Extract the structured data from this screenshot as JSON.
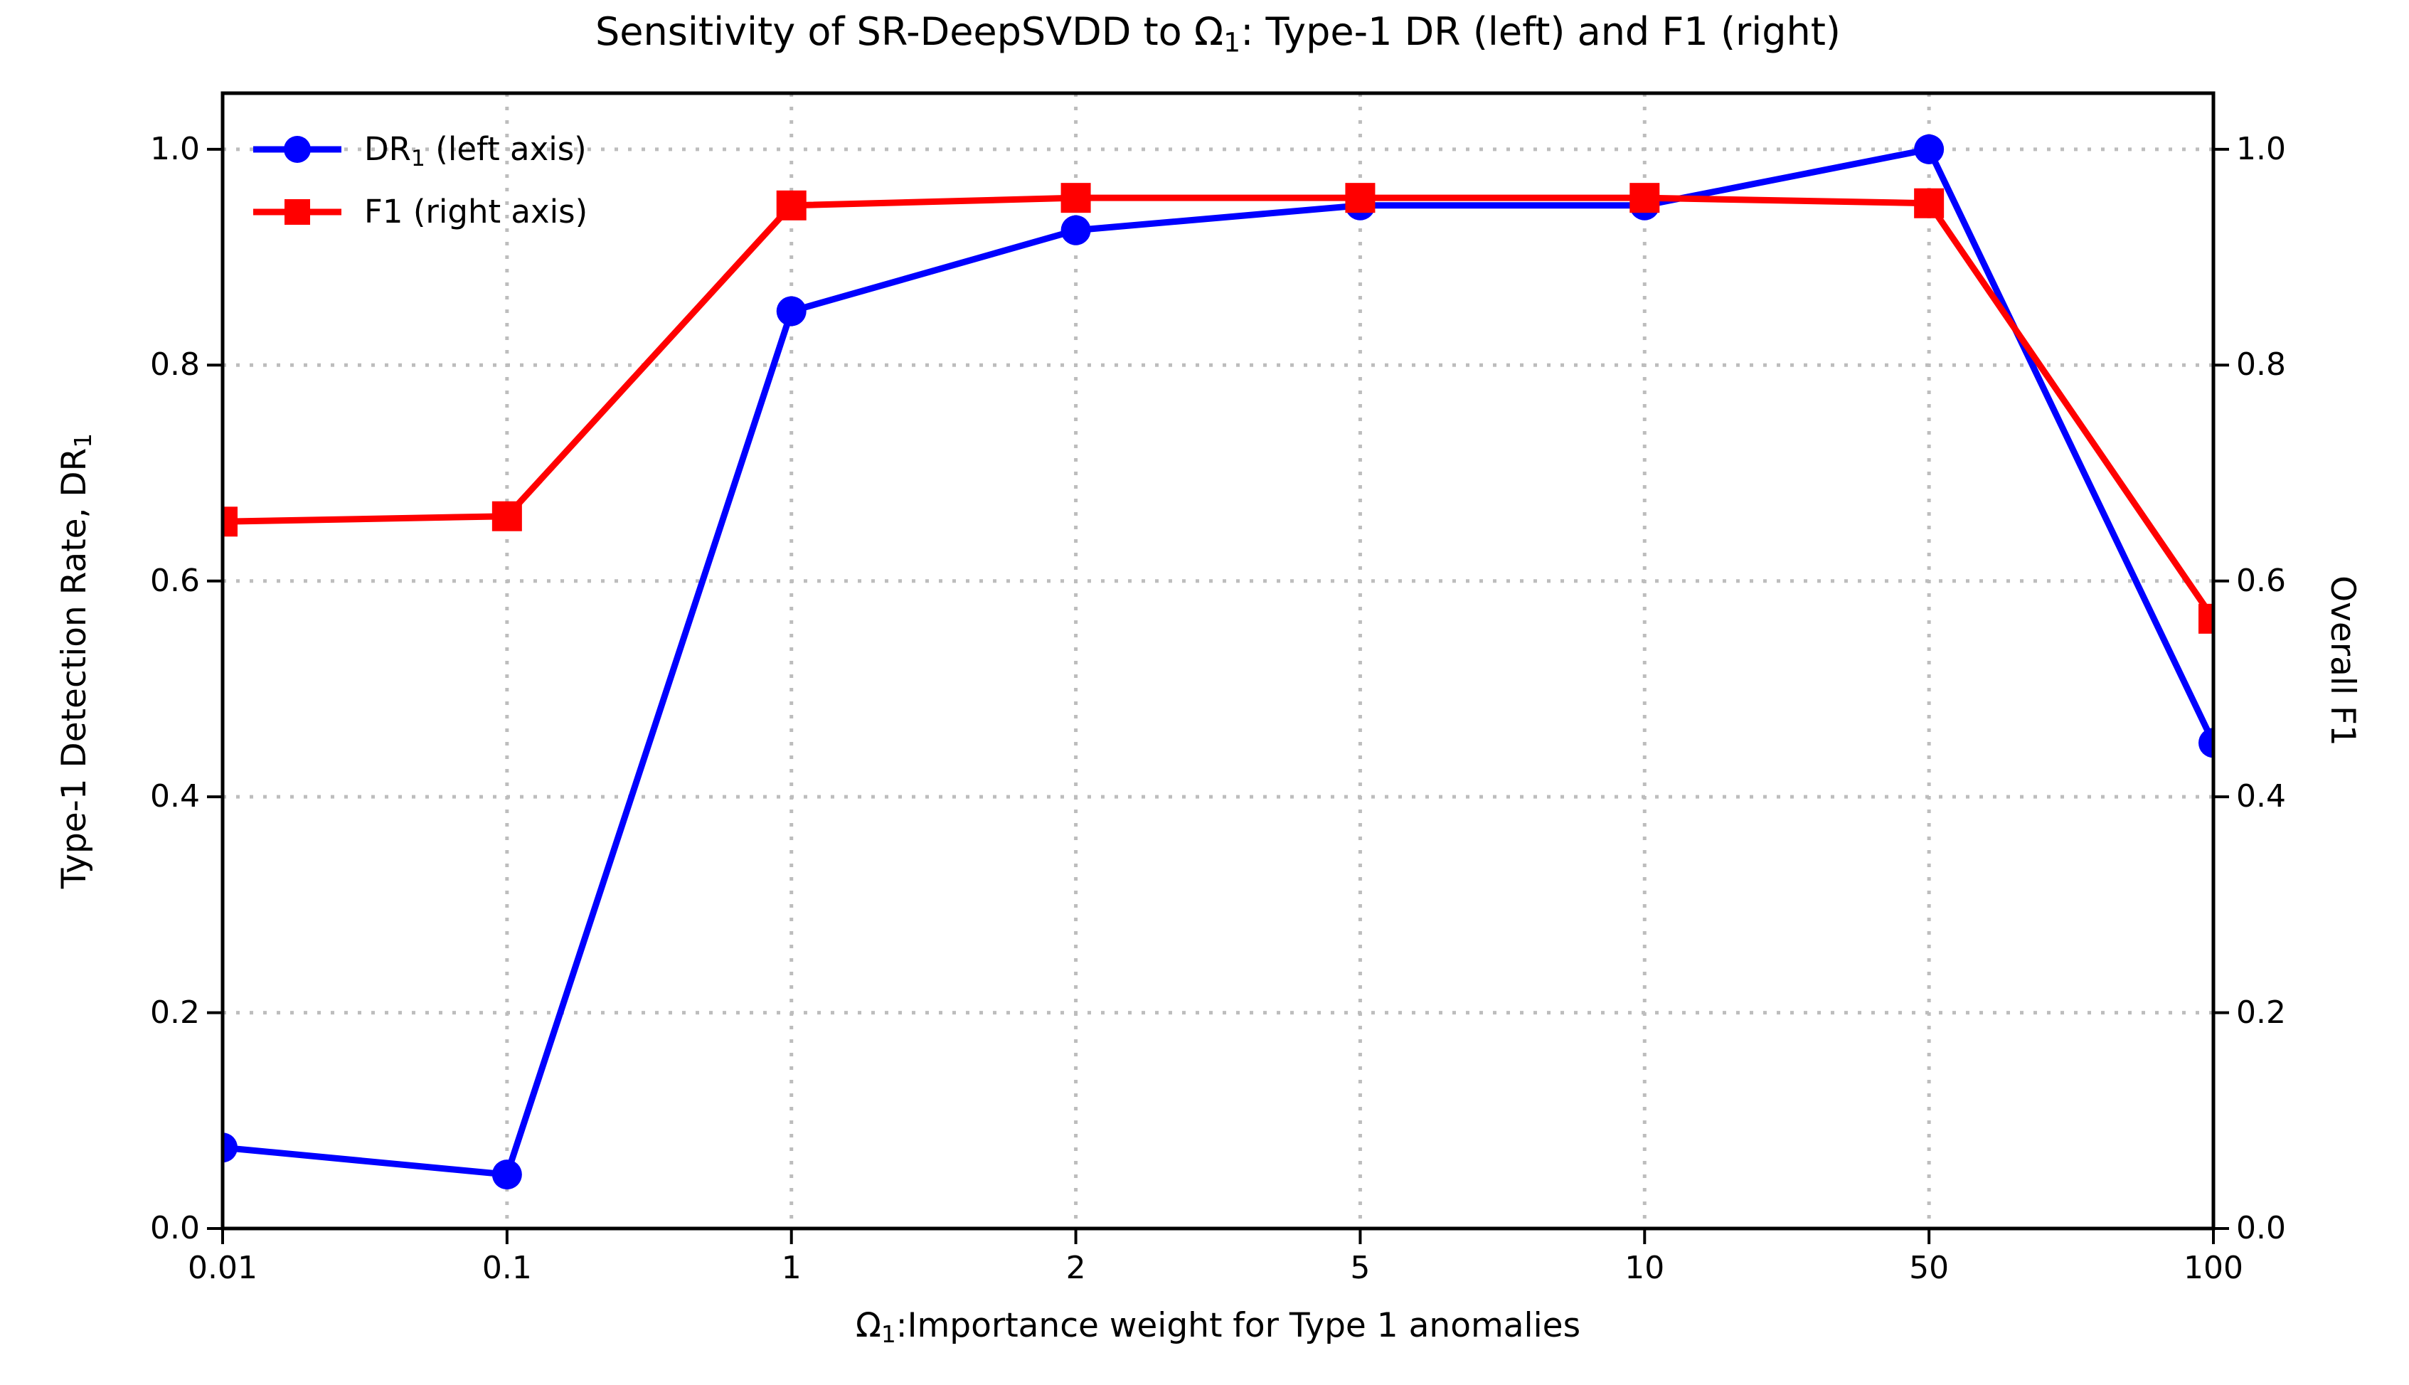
{
  "figure": {
    "title": {
      "prefix": "Sensitivity of SR-DeepSVDD to Ω",
      "sub": "1",
      "suffix": ": Type-1 DR (left) and F1 (right)"
    },
    "background_color": "#ffffff"
  },
  "axes": {
    "x": {
      "label": {
        "prefix": "Ω",
        "sub": "1",
        "suffix": ":Importance weight for Type 1 anomalies"
      },
      "tick_labels": [
        "0.01",
        "0.1",
        "1",
        "2",
        "5",
        "10",
        "50",
        "100"
      ]
    },
    "y_left": {
      "label": {
        "prefix": "Type-1 Detection Rate, DR",
        "sub": "1"
      },
      "tick_labels": [
        "0.0",
        "0.2",
        "0.4",
        "0.6",
        "0.8",
        "1.0"
      ]
    },
    "y_right": {
      "label": "Overall F1",
      "tick_labels": [
        "0.0",
        "0.2",
        "0.4",
        "0.6",
        "0.8",
        "1.0"
      ]
    }
  },
  "chart_data": {
    "type": "line",
    "title": "Sensitivity of SR-DeepSVDD to Ω_1: Type-1 DR (left) and F1 (right)",
    "xlabel": "Ω_1:Importance weight for Type 1 anomalies",
    "ylabel_left": "Type-1 Detection Rate, DR_1",
    "ylabel_right": "Overall F1",
    "x_categories": [
      "0.01",
      "0.1",
      "1",
      "2",
      "5",
      "10",
      "50",
      "100"
    ],
    "x_spacing": "equal",
    "ylim": [
      0.0,
      1.052
    ],
    "yticks": [
      0.0,
      0.2,
      0.4,
      0.6,
      0.8,
      1.0
    ],
    "grid": {
      "show": true,
      "line_style": "dotted",
      "color": "#bdbdbd"
    },
    "legend_position": "upper-left",
    "legend_frame": false,
    "series": [
      {
        "label_prefix": "DR",
        "label_sub": "1",
        "label_suffix": " (left axis)",
        "axis": "left",
        "color": "#0000ff",
        "marker": "circle",
        "values": [
          0.075,
          0.05,
          0.85,
          0.925,
          0.948,
          0.948,
          1.0,
          0.45
        ]
      },
      {
        "label_prefix": "F1",
        "label_sub": "",
        "label_suffix": " (right axis)",
        "axis": "right",
        "color": "#ff0000",
        "marker": "square",
        "values": [
          0.655,
          0.66,
          0.948,
          0.955,
          0.955,
          0.955,
          0.95,
          0.565
        ]
      }
    ]
  }
}
